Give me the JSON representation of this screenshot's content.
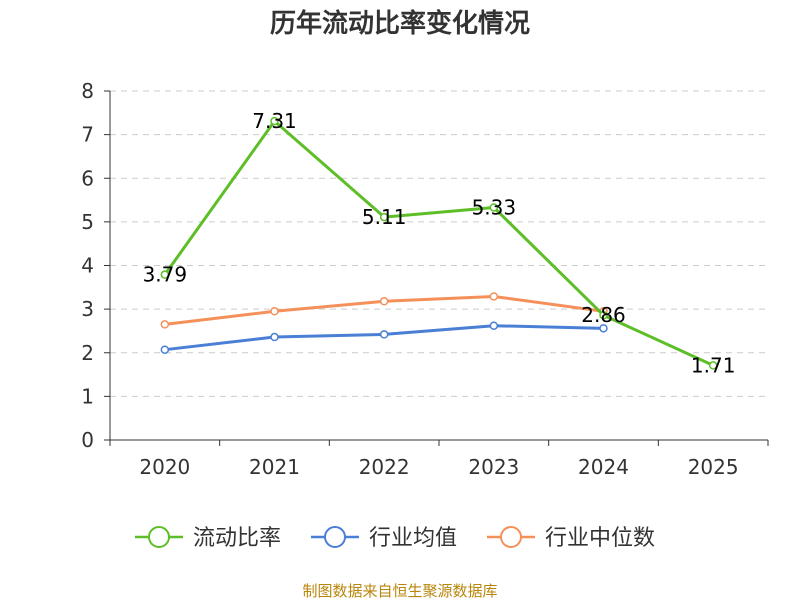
{
  "chart_data": {
    "type": "line",
    "title": "历年流动比率变化情况",
    "categories": [
      "2020",
      "2021",
      "2022",
      "2023",
      "2024",
      "2025"
    ],
    "ylim": [
      0,
      8
    ],
    "yticks": [
      0,
      1,
      2,
      3,
      4,
      5,
      6,
      7,
      8
    ],
    "grid": true,
    "series": [
      {
        "name": "流动比率",
        "color": "#5dbe28",
        "values": [
          3.79,
          7.31,
          5.11,
          5.33,
          2.86,
          1.71
        ],
        "labels": [
          "3.79",
          "7.31",
          "5.11",
          "5.33",
          "2.86",
          "1.71"
        ],
        "show_labels": true
      },
      {
        "name": "行业均值",
        "color": "#4a7fd6",
        "values": [
          2.07,
          2.36,
          2.42,
          2.62,
          2.56,
          null
        ],
        "show_labels": false
      },
      {
        "name": "行业中位数",
        "color": "#f5905a",
        "values": [
          2.65,
          2.95,
          3.18,
          3.29,
          2.95,
          null
        ],
        "show_labels": false
      }
    ],
    "legend_position": "bottom"
  },
  "source_text": "制图数据来自恒生聚源数据库"
}
